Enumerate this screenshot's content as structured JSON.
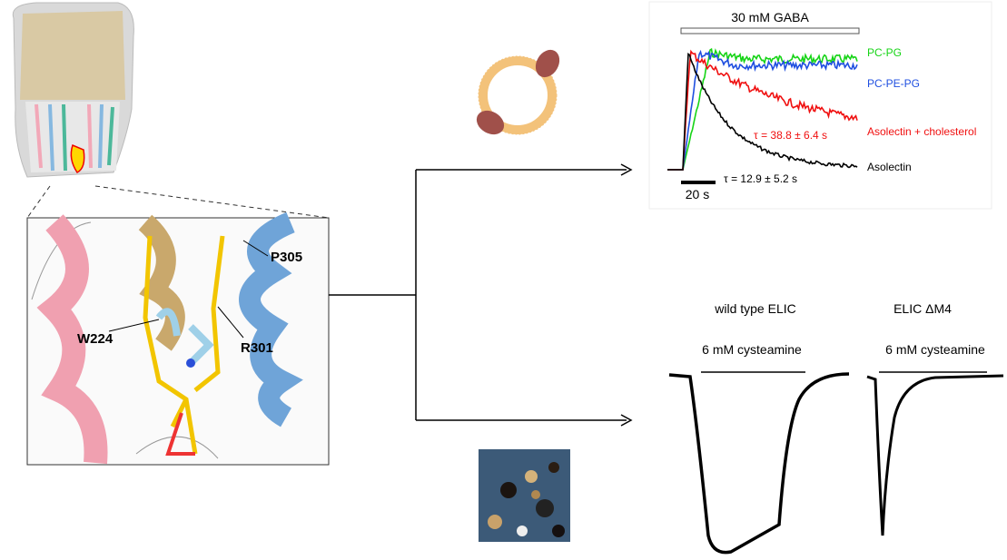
{
  "structure_panel": {
    "labels": [
      "W224",
      "P305",
      "R301"
    ]
  },
  "gaba_recording": {
    "stimulus": "30 mM GABA",
    "scale_bar": "20 s",
    "traces": [
      {
        "label": "PC-PG",
        "color": "#16d416"
      },
      {
        "label": "PC-PE-PG",
        "color": "#1f4fe0"
      },
      {
        "label": "Asolectin + cholesterol",
        "color": "#f01010"
      },
      {
        "label": "Asolectin",
        "color": "#000000"
      }
    ],
    "time_constants": [
      {
        "text": "τ = 38.8 ± 6.4 s",
        "color": "#f01010"
      },
      {
        "text": "τ = 12.9 ± 5.2 s",
        "color": "#000000"
      }
    ]
  },
  "cysteamine_recording": {
    "panels": [
      {
        "title": "wild type ELIC",
        "stimulus": "6 mM cysteamine"
      },
      {
        "title": "ELIC ΔM4",
        "stimulus": "6 mM cysteamine"
      }
    ]
  }
}
